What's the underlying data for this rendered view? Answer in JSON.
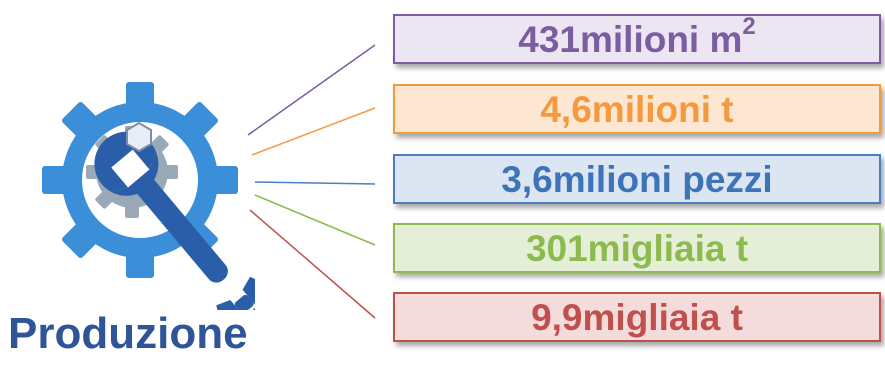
{
  "title": "Produzione",
  "icon": "gear-wrench-icon",
  "items": [
    {
      "value": "431",
      "unit": "milioni m",
      "sup": "2",
      "border": "#7b5da1",
      "fill": "#ece6f2",
      "text": "#7b5da1"
    },
    {
      "value": "4,6",
      "unit": "milioni t",
      "sup": "",
      "border": "#f39a3f",
      "fill": "#fde6d2",
      "text": "#f39a3f"
    },
    {
      "value": "3,6",
      "unit": "milioni pezzi",
      "sup": "",
      "border": "#4b7fc1",
      "fill": "#dce6f3",
      "text": "#3e73b7"
    },
    {
      "value": "301",
      "unit": "migliaia t",
      "sup": "",
      "border": "#8cba4e",
      "fill": "#e5efd8",
      "text": "#8cba4e"
    },
    {
      "value": "9,9",
      "unit": "migliaia t",
      "sup": "",
      "border": "#c0504d",
      "fill": "#f3dcdb",
      "text": "#c0504d"
    }
  ]
}
